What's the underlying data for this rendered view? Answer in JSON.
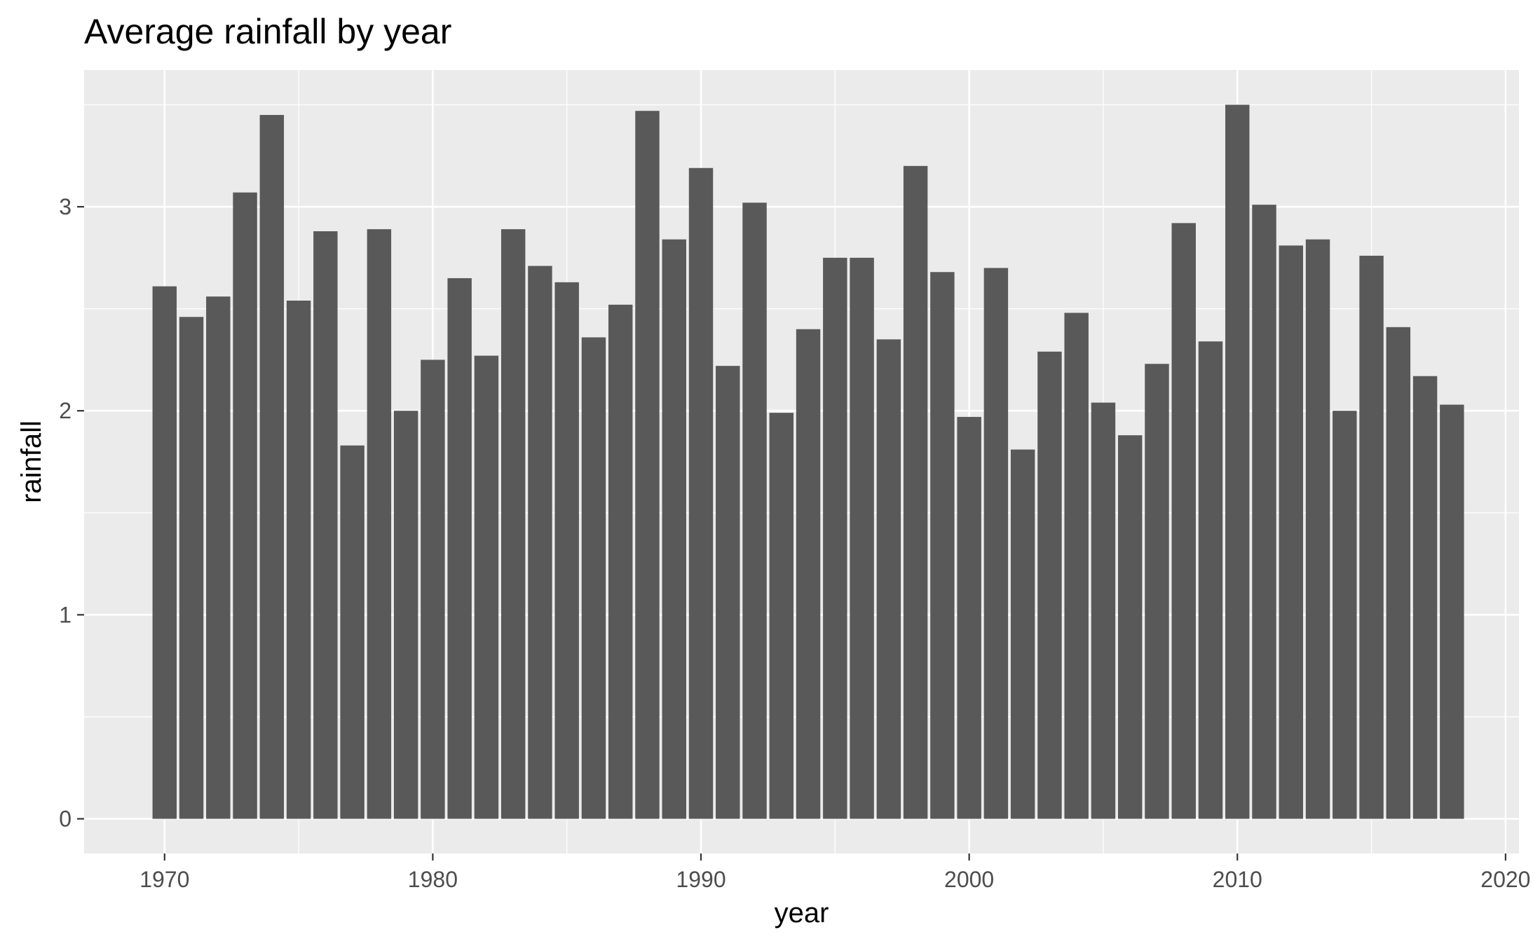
{
  "chart_data": {
    "type": "bar",
    "title": "Average rainfall by year",
    "xlabel": "year",
    "ylabel": "rainfall",
    "xlim": [
      1967,
      2020.5
    ],
    "ylim": [
      -0.17,
      3.67
    ],
    "x_ticks": [
      1970,
      1980,
      1990,
      2000,
      2010,
      2020
    ],
    "y_ticks": [
      0,
      1,
      2,
      3
    ],
    "grid": true,
    "legend": "none",
    "colors": {
      "panel": "#EBEBEB",
      "grid": "#FFFFFF",
      "bar": "#595959",
      "tick_label": "#4D4D4D"
    },
    "x": [
      1970,
      1971,
      1972,
      1973,
      1974,
      1975,
      1976,
      1977,
      1978,
      1979,
      1980,
      1981,
      1982,
      1983,
      1984,
      1985,
      1986,
      1987,
      1988,
      1989,
      1990,
      1991,
      1992,
      1993,
      1994,
      1995,
      1996,
      1997,
      1998,
      1999,
      2000,
      2001,
      2002,
      2003,
      2004,
      2005,
      2006,
      2007,
      2008,
      2009,
      2010,
      2011,
      2012,
      2013,
      2014,
      2015,
      2016,
      2017,
      2018
    ],
    "values": [
      2.61,
      2.46,
      2.56,
      3.07,
      3.45,
      2.54,
      2.88,
      1.83,
      2.89,
      2.0,
      2.25,
      2.65,
      2.27,
      2.89,
      2.71,
      2.63,
      2.36,
      2.52,
      3.47,
      2.84,
      3.19,
      2.22,
      3.02,
      1.99,
      2.4,
      2.75,
      2.75,
      2.35,
      3.2,
      2.68,
      1.97,
      2.7,
      1.81,
      2.29,
      2.48,
      2.04,
      1.88,
      2.23,
      2.92,
      2.34,
      3.5,
      3.01,
      2.81,
      2.84,
      2.0,
      2.76,
      2.41,
      2.17,
      2.03
    ]
  }
}
